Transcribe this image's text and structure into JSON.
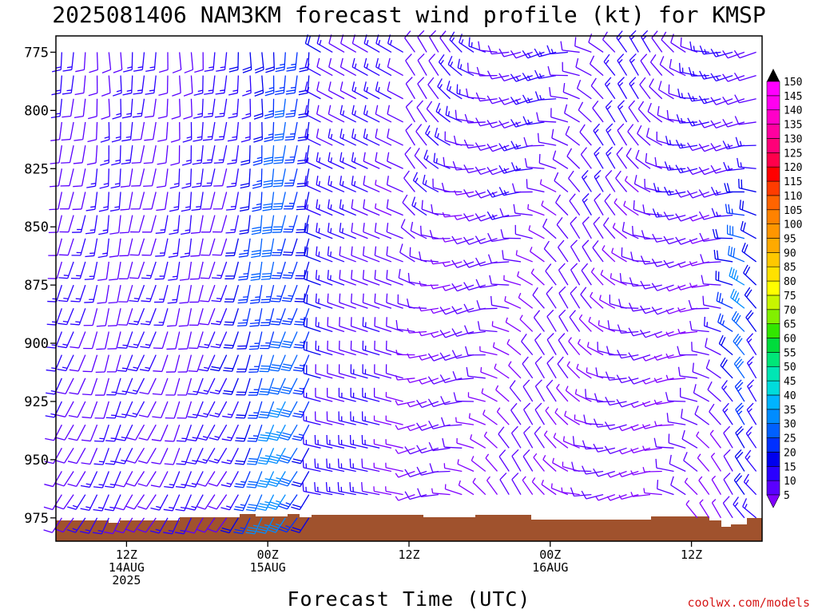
{
  "chart_data": {
    "type": "wind-profile",
    "title": "2025081406 NAM3KM forecast wind profile (kt) for KMSP",
    "xlabel": "Forecast Time (UTC)",
    "ylabel": "",
    "y_axis": {
      "ticks": [
        "775",
        "800",
        "825",
        "850",
        "875",
        "900",
        "925",
        "950",
        "975"
      ],
      "ylim": [
        768,
        985
      ],
      "inverted": true
    },
    "x_axis": {
      "tick_labels": [
        {
          "hour": 6,
          "lines": [
            "12Z",
            "14AUG",
            "2025"
          ]
        },
        {
          "hour": 18,
          "lines": [
            "00Z",
            "15AUG"
          ]
        },
        {
          "hour": 30,
          "lines": [
            "12Z"
          ]
        },
        {
          "hour": 42,
          "lines": [
            "00Z",
            "16AUG"
          ]
        },
        {
          "hour": 54,
          "lines": [
            "12Z"
          ]
        }
      ],
      "xlim": [
        0,
        60
      ]
    },
    "colorbar": {
      "unit": "kt",
      "levels": [
        "5",
        "10",
        "15",
        "20",
        "25",
        "30",
        "35",
        "40",
        "45",
        "50",
        "55",
        "60",
        "65",
        "70",
        "75",
        "80",
        "85",
        "90",
        "95",
        "100",
        "105",
        "110",
        "115",
        "120",
        "125",
        "130",
        "135",
        "140",
        "145",
        "150"
      ],
      "colors": [
        "#8000ff",
        "#5a00ff",
        "#2a00ff",
        "#0000ee",
        "#0030ff",
        "#0060ff",
        "#008cff",
        "#00b4ff",
        "#00dcdc",
        "#00e6b4",
        "#00e678",
        "#00dc3c",
        "#32e600",
        "#82f000",
        "#c8f500",
        "#ffff00",
        "#ffe100",
        "#ffc800",
        "#ffaa00",
        "#ff9600",
        "#ff8200",
        "#ff6400",
        "#ff3c00",
        "#ff0000",
        "#ff004b",
        "#ff0078",
        "#ff00a0",
        "#ff00c8",
        "#ff00f0",
        "#ff00ff"
      ]
    },
    "terrain_color": "#a0522d",
    "grid": false,
    "legend_placement": "right"
  },
  "credit": "coolwx.com/models"
}
